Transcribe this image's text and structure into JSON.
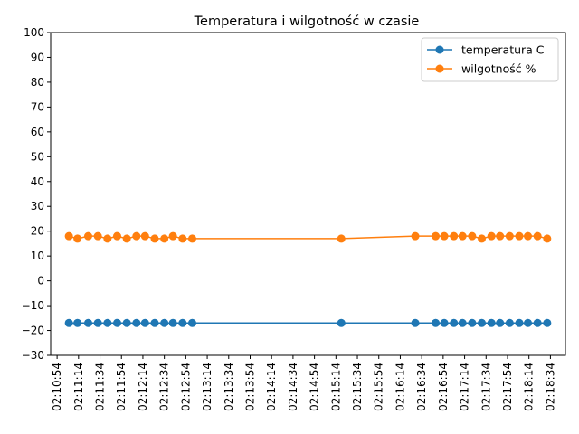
{
  "chart_data": {
    "type": "line",
    "title": "Temperatura i wilgotność w czasie",
    "xlabel": "",
    "ylabel": "",
    "ylim": [
      -30,
      100
    ],
    "yticks": [
      -30,
      -20,
      -10,
      0,
      10,
      20,
      30,
      40,
      50,
      60,
      70,
      80,
      90,
      100
    ],
    "xlim": [
      "02:10:48",
      "02:18:48"
    ],
    "xticks": [
      "02:10:54",
      "02:11:14",
      "02:11:34",
      "02:11:54",
      "02:12:14",
      "02:12:34",
      "02:12:54",
      "02:13:14",
      "02:13:34",
      "02:13:54",
      "02:14:14",
      "02:14:34",
      "02:14:54",
      "02:15:14",
      "02:15:34",
      "02:15:54",
      "02:16:14",
      "02:16:34",
      "02:16:54",
      "02:17:14",
      "02:17:34",
      "02:17:54",
      "02:18:14",
      "02:18:34"
    ],
    "x": [
      "02:11:05",
      "02:11:13",
      "02:11:23",
      "02:11:32",
      "02:11:41",
      "02:11:50",
      "02:11:59",
      "02:12:08",
      "02:12:16",
      "02:12:25",
      "02:12:34",
      "02:12:42",
      "02:12:51",
      "02:13:00",
      "02:15:19",
      "02:16:28",
      "02:16:47",
      "02:16:55",
      "02:17:04",
      "02:17:12",
      "02:17:21",
      "02:17:30",
      "02:17:39",
      "02:17:47",
      "02:17:56",
      "02:18:05",
      "02:18:13",
      "02:18:22",
      "02:18:31"
    ],
    "series": [
      {
        "name": "temperatura C",
        "color": "#1f77b4",
        "values": [
          -17,
          -17,
          -17,
          -17,
          -17,
          -17,
          -17,
          -17,
          -17,
          -17,
          -17,
          -17,
          -17,
          -17,
          -17,
          -17,
          -17,
          -17,
          -17,
          -17,
          -17,
          -17,
          -17,
          -17,
          -17,
          -17,
          -17,
          -17,
          -17
        ]
      },
      {
        "name": "wilgotność %",
        "color": "#ff7f0e",
        "values": [
          18,
          17,
          18,
          18,
          17,
          18,
          17,
          18,
          18,
          17,
          17,
          18,
          17,
          17,
          17,
          18,
          18,
          18,
          18,
          18,
          18,
          17,
          18,
          18,
          18,
          18,
          18,
          18,
          17
        ]
      }
    ],
    "legend_position": "top-right",
    "grid": false
  }
}
